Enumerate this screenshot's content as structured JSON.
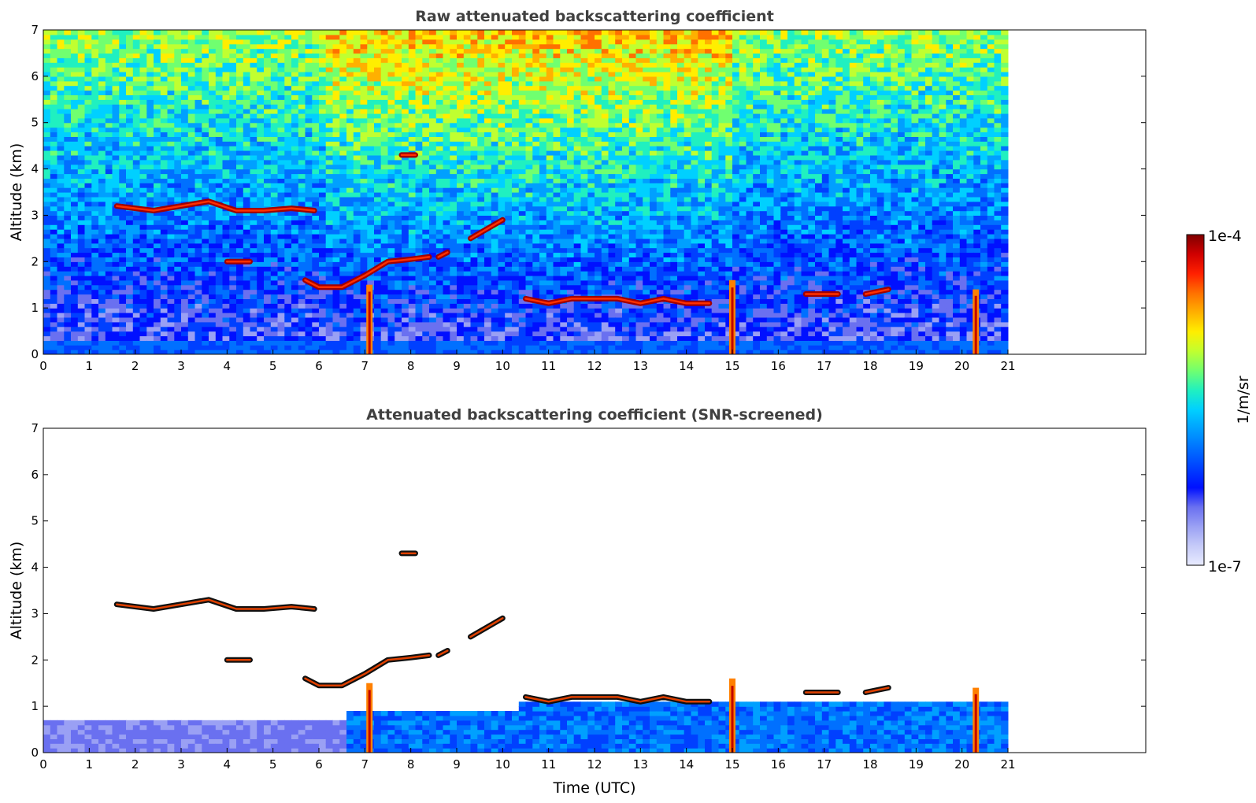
{
  "chart_data": [
    {
      "type": "heatmap",
      "title": "Raw attenuated backscattering coefficient",
      "xlabel": "",
      "ylabel": "Altitude (km)",
      "xlim": [
        0,
        24
      ],
      "ylim": [
        0,
        7
      ],
      "xticks": [
        "0",
        "1",
        "2",
        "3",
        "4",
        "5",
        "6",
        "7",
        "8",
        "9",
        "10",
        "11",
        "12",
        "13",
        "14",
        "15",
        "16",
        "17",
        "18",
        "19",
        "20",
        "21"
      ],
      "yticks": [
        "0",
        "1",
        "2",
        "3",
        "4",
        "5",
        "6",
        "7"
      ],
      "data_extent_hours": [
        0,
        21
      ],
      "features": [
        {
          "name": "cloud-layer-1",
          "t": [
            1.6,
            2.4,
            3.0,
            3.6,
            4.2,
            4.8,
            5.4,
            5.9
          ],
          "alt": [
            3.2,
            3.1,
            3.2,
            3.3,
            3.1,
            3.1,
            3.15,
            3.1
          ]
        },
        {
          "name": "rising-layer",
          "t": [
            5.7,
            6.0,
            6.5,
            7.0,
            7.5,
            8.0,
            8.4
          ],
          "alt": [
            1.6,
            1.45,
            1.45,
            1.7,
            2.0,
            2.05,
            2.1
          ]
        },
        {
          "name": "patch-a",
          "t": [
            4.0,
            4.5
          ],
          "alt": [
            2.0,
            2.0
          ]
        },
        {
          "name": "patch-b",
          "t": [
            7.8,
            8.1
          ],
          "alt": [
            4.3,
            4.3
          ]
        },
        {
          "name": "patch-c",
          "t": [
            8.6,
            8.8
          ],
          "alt": [
            2.1,
            2.2
          ]
        },
        {
          "name": "patch-d",
          "t": [
            9.3,
            10.0
          ],
          "alt": [
            2.5,
            2.9
          ]
        },
        {
          "name": "low-cloud-band",
          "t": [
            10.5,
            11,
            11.5,
            12,
            12.5,
            13,
            13.5,
            14,
            14.5
          ],
          "alt": [
            1.2,
            1.1,
            1.2,
            1.2,
            1.2,
            1.1,
            1.2,
            1.1,
            1.1
          ]
        },
        {
          "name": "patch-e",
          "t": [
            16.6,
            17.3
          ],
          "alt": [
            1.3,
            1.3
          ]
        },
        {
          "name": "patch-f",
          "t": [
            17.9,
            18.4
          ],
          "alt": [
            1.3,
            1.4
          ]
        }
      ],
      "columns": [
        {
          "name": "plume-1",
          "t": 7.1,
          "alt": 1.5
        },
        {
          "name": "plume-2",
          "t": 15.0,
          "alt": 1.6
        },
        {
          "name": "plume-3",
          "t": 20.3,
          "alt": 1.4
        }
      ]
    },
    {
      "type": "heatmap",
      "title": "Attenuated backscattering coefficient (SNR-screened)",
      "xlabel": "Time (UTC)",
      "ylabel": "Altitude (km)",
      "xlim": [
        0,
        24
      ],
      "ylim": [
        0,
        7
      ],
      "xticks": [
        "0",
        "1",
        "2",
        "3",
        "4",
        "5",
        "6",
        "7",
        "8",
        "9",
        "10",
        "11",
        "12",
        "13",
        "14",
        "15",
        "16",
        "17",
        "18",
        "19",
        "20",
        "21"
      ],
      "yticks": [
        "0",
        "1",
        "2",
        "3",
        "4",
        "5",
        "6",
        "7"
      ],
      "data_extent_hours": [
        0,
        21
      ]
    }
  ],
  "colorbar": {
    "label": "1/m/sr",
    "max_label": "1e-4",
    "min_label": "1e-7",
    "colors": [
      "#e8ebff",
      "#c5caf8",
      "#9aa0f4",
      "#6a70f0",
      "#0010ff",
      "#0040ff",
      "#0070ff",
      "#00a0ff",
      "#00d0ff",
      "#20f0c0",
      "#70ff70",
      "#c0ff30",
      "#ffee00",
      "#ffb000",
      "#ff7000",
      "#ff2000",
      "#d00000",
      "#800000"
    ]
  }
}
